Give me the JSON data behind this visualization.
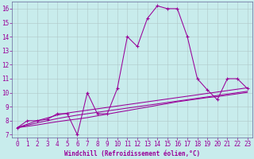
{
  "xlabel": "Windchill (Refroidissement éolien,°C)",
  "background_color": "#c8ecec",
  "grid_color": "#b0c8c8",
  "line_color": "#990099",
  "spine_color": "#666699",
  "x_data": [
    0,
    1,
    2,
    3,
    4,
    5,
    6,
    7,
    8,
    9,
    10,
    11,
    12,
    13,
    14,
    15,
    16,
    17,
    18,
    19,
    20,
    21,
    22,
    23
  ],
  "y_main": [
    7.5,
    8.0,
    8.0,
    8.1,
    8.5,
    8.5,
    7.0,
    10.0,
    8.5,
    8.5,
    10.3,
    14.0,
    13.3,
    15.3,
    16.2,
    16.0,
    16.0,
    14.0,
    11.0,
    10.2,
    9.5,
    11.0,
    11.0,
    10.3
  ],
  "y_line1": [
    7.5,
    7.75,
    8.0,
    8.2,
    8.4,
    8.55,
    8.65,
    8.75,
    8.85,
    8.95,
    9.05,
    9.15,
    9.25,
    9.35,
    9.45,
    9.55,
    9.65,
    9.75,
    9.85,
    9.95,
    10.05,
    10.15,
    10.25,
    10.35
  ],
  "y_line2": [
    7.5,
    7.68,
    7.85,
    8.0,
    8.15,
    8.28,
    8.4,
    8.5,
    8.6,
    8.7,
    8.8,
    8.9,
    9.0,
    9.1,
    9.2,
    9.3,
    9.4,
    9.5,
    9.6,
    9.7,
    9.8,
    9.9,
    10.0,
    10.1
  ],
  "y_line3": [
    7.5,
    7.6,
    7.7,
    7.82,
    7.93,
    8.03,
    8.12,
    8.22,
    8.35,
    8.47,
    8.6,
    8.72,
    8.85,
    8.97,
    9.1,
    9.22,
    9.35,
    9.45,
    9.55,
    9.65,
    9.72,
    9.82,
    9.92,
    10.02
  ],
  "ylim": [
    6.8,
    16.5
  ],
  "xlim": [
    -0.5,
    23.5
  ],
  "yticks": [
    7,
    8,
    9,
    10,
    11,
    12,
    13,
    14,
    15,
    16
  ],
  "xticks": [
    0,
    1,
    2,
    3,
    4,
    5,
    6,
    7,
    8,
    9,
    10,
    11,
    12,
    13,
    14,
    15,
    16,
    17,
    18,
    19,
    20,
    21,
    22,
    23
  ],
  "tick_fontsize": 5.5,
  "xlabel_fontsize": 5.5,
  "marker_size": 3.0,
  "linewidth": 0.75
}
